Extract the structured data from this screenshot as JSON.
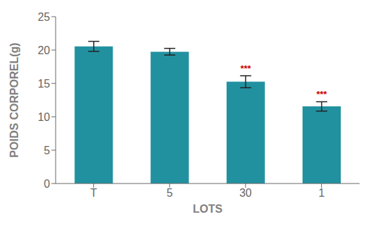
{
  "chart_data": {
    "type": "bar",
    "categories": [
      "T",
      "5",
      "30",
      "1"
    ],
    "values": [
      20.55,
      19.75,
      15.25,
      11.55
    ],
    "errors": [
      0.75,
      0.5,
      0.9,
      0.7
    ],
    "annotations": [
      null,
      null,
      "***",
      "***"
    ],
    "color": "#2191a0",
    "xlabel": "LOTS",
    "ylabel": "POIDS CORPOREL(g)",
    "ylim": [
      0,
      25
    ],
    "yticks": [
      0,
      5,
      10,
      15,
      20,
      25
    ],
    "grid": false
  }
}
